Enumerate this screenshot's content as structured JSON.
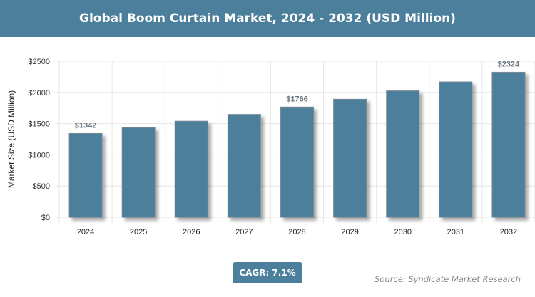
{
  "header": {
    "title": "Global Boom Curtain Market, 2024 - 2032 (USD Million)"
  },
  "chart_data": {
    "type": "bar",
    "title": "Global Boom Curtain Market, 2024 - 2032 (USD Million)",
    "categories": [
      "2024",
      "2025",
      "2026",
      "2027",
      "2028",
      "2029",
      "2030",
      "2031",
      "2032"
    ],
    "values": [
      1342,
      1437,
      1539,
      1648,
      1766,
      1891,
      2025,
      2169,
      2324
    ],
    "data_labels": {
      "2024": "$1342",
      "2028": "$1766",
      "2032": "$2324"
    },
    "ylabel": "Market Size (USD Million)",
    "xlabel": "",
    "ylim": [
      0,
      2500
    ],
    "yticks": [
      "$0",
      "$500",
      "$1000",
      "$1500",
      "$2000",
      "$2500"
    ],
    "grid": true,
    "bar_color": "#4b7f9b"
  },
  "footer": {
    "cagr": "CAGR: 7.1%",
    "source": "Source: Syndicate Market Research"
  }
}
